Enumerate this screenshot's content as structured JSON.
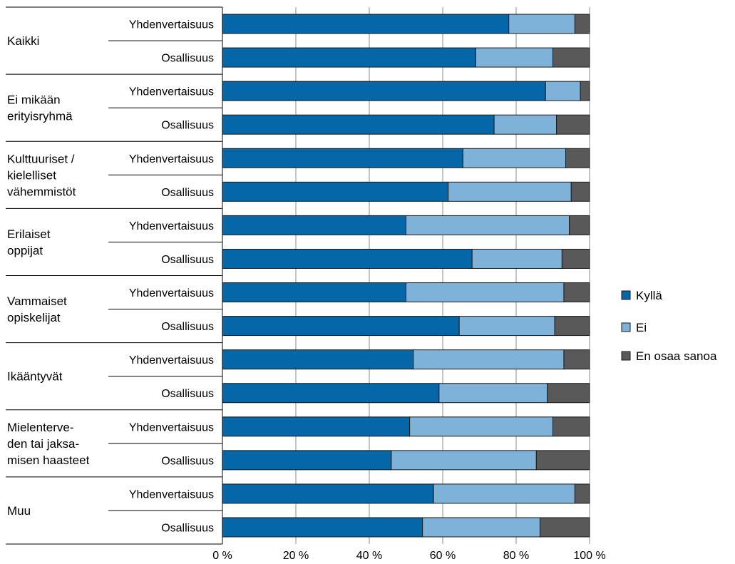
{
  "chart_data": {
    "type": "bar",
    "orientation": "horizontal",
    "stacked": "percent",
    "groups": [
      {
        "label": [
          "Kaikki"
        ],
        "items": [
          {
            "label": "Yhdenvertaisuus",
            "values": [
              78,
              18,
              4
            ]
          },
          {
            "label": "Osallisuus",
            "values": [
              69,
              21,
              10
            ]
          }
        ]
      },
      {
        "label": [
          "Ei mikään",
          "erityisryhmä"
        ],
        "items": [
          {
            "label": "Yhdenvertaisuus",
            "values": [
              88,
              9.5,
              2.5
            ]
          },
          {
            "label": "Osallisuus",
            "values": [
              74,
              17,
              9
            ]
          }
        ]
      },
      {
        "label": [
          "Kulttuuriset /",
          "kielelliset",
          "vähemmistöt"
        ],
        "items": [
          {
            "label": "Yhdenvertaisuus",
            "values": [
              65.5,
              28,
              6.5
            ]
          },
          {
            "label": "Osallisuus",
            "values": [
              61.5,
              33.5,
              5
            ]
          }
        ]
      },
      {
        "label": [
          "Erilaiset",
          "oppijat"
        ],
        "items": [
          {
            "label": "Yhdenvertaisuus",
            "values": [
              50,
              44.5,
              5.5
            ]
          },
          {
            "label": "Osallisuus",
            "values": [
              68,
              24.5,
              7.5
            ]
          }
        ]
      },
      {
        "label": [
          "Vammaiset",
          "opiskelijat"
        ],
        "items": [
          {
            "label": "Yhdenvertaisuus",
            "values": [
              50,
              43,
              7
            ]
          },
          {
            "label": "Osallisuus",
            "values": [
              64.5,
              26,
              9.5
            ]
          }
        ]
      },
      {
        "label": [
          "Ikääntyvät"
        ],
        "items": [
          {
            "label": "Yhdenvertaisuus",
            "values": [
              52,
              41,
              7
            ]
          },
          {
            "label": "Osallisuus",
            "values": [
              59,
              29.5,
              11.5
            ]
          }
        ]
      },
      {
        "label": [
          "Mielenterve-",
          "den tai jaksa-",
          "misen haasteet"
        ],
        "items": [
          {
            "label": "Yhdenvertaisuus",
            "values": [
              51,
              39,
              10
            ]
          },
          {
            "label": "Osallisuus",
            "values": [
              46,
              39.5,
              14.5
            ]
          }
        ]
      },
      {
        "label": [
          "Muu"
        ],
        "items": [
          {
            "label": "Yhdenvertaisuus",
            "values": [
              57.5,
              38.5,
              4
            ]
          },
          {
            "label": "Osallisuus",
            "values": [
              54.5,
              32,
              13.5
            ]
          }
        ]
      }
    ],
    "series": [
      {
        "name": "Kyllä",
        "color": "#0566A8"
      },
      {
        "name": "Ei",
        "color": "#7FB2D8"
      },
      {
        "name": "En osaa sanoa",
        "color": "#595959"
      }
    ],
    "x_ticks": [
      "0 %",
      "20 %",
      "40 %",
      "60 %",
      "80 %",
      "100 %"
    ],
    "xlim": [
      0,
      100
    ],
    "grid": true,
    "legend_position": "right",
    "title": "",
    "xlabel": "",
    "ylabel": ""
  }
}
